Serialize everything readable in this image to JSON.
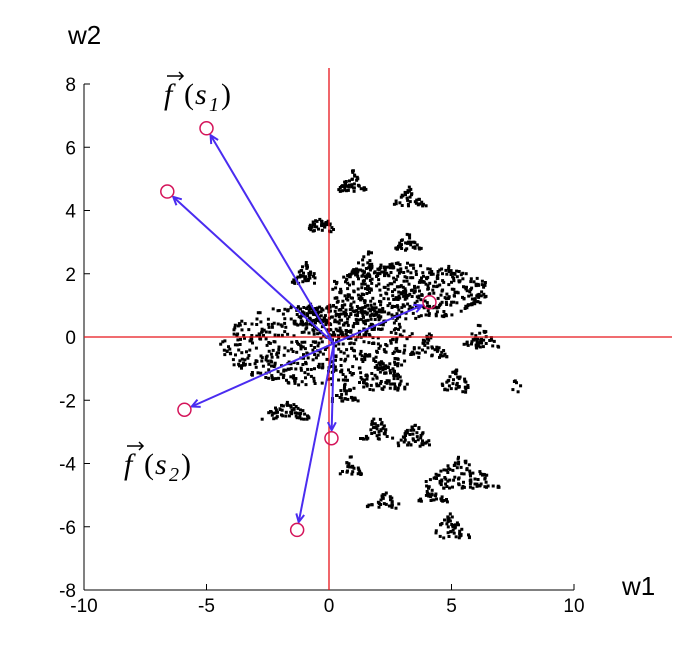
{
  "chart_data": {
    "type": "scatter",
    "title": "",
    "xlabel": "w1",
    "ylabel": "w2",
    "xlim": [
      -10,
      10
    ],
    "ylim": [
      -8,
      8
    ],
    "xticks": [
      "-10",
      "-5",
      "0",
      "5",
      "10"
    ],
    "yticks": [
      "8",
      "6",
      "4",
      "2",
      "0",
      "-2",
      "-4",
      "-6",
      "-8"
    ],
    "grid": false,
    "reference_lines": {
      "x": 0,
      "y": 0,
      "color": "#e8141b"
    },
    "colors": {
      "points": "#000000",
      "markers": "#d4145a",
      "arrows": "#4a2cf0",
      "reference": "#e8141b"
    },
    "arrow_origin": [
      0.2,
      -0.2
    ],
    "highlighted_points": [
      {
        "x": -5.0,
        "y": 6.6
      },
      {
        "x": -6.6,
        "y": 4.6
      },
      {
        "x": 4.1,
        "y": 1.1
      },
      {
        "x": -5.9,
        "y": -2.3
      },
      {
        "x": 0.1,
        "y": -3.2
      },
      {
        "x": -1.3,
        "y": -6.1
      }
    ],
    "clusters": [
      {
        "cx": -0.5,
        "cy": -0.2,
        "rx": 4.0,
        "ry": 1.3,
        "n": 520,
        "shape": "ellipse"
      },
      {
        "cx": 3.2,
        "cy": 1.5,
        "rx": 3.3,
        "ry": 0.9,
        "n": 420,
        "shape": "ellipse"
      },
      {
        "cx": 0.6,
        "cy": 0.6,
        "rx": 1.8,
        "ry": 0.6,
        "n": 160,
        "shape": "ellipse"
      },
      {
        "cx": 0.9,
        "cy": 5.0,
        "rx": 0.4,
        "ry": 0.4,
        "n": 45,
        "shape": "tri"
      },
      {
        "cx": 3.2,
        "cy": 4.5,
        "rx": 0.45,
        "ry": 0.35,
        "n": 35,
        "shape": "tri"
      },
      {
        "cx": -0.4,
        "cy": 3.7,
        "rx": 0.4,
        "ry": 0.4,
        "n": 40,
        "shape": "tri"
      },
      {
        "cx": 3.2,
        "cy": 3.1,
        "rx": 0.4,
        "ry": 0.35,
        "n": 35,
        "shape": "tri"
      },
      {
        "cx": -1.0,
        "cy": 2.1,
        "rx": 0.4,
        "ry": 0.4,
        "n": 40,
        "shape": "tri"
      },
      {
        "cx": 1.6,
        "cy": 2.4,
        "rx": 0.6,
        "ry": 0.5,
        "n": 55,
        "shape": "tri"
      },
      {
        "cx": -0.8,
        "cy": 0.8,
        "rx": 0.5,
        "ry": 0.4,
        "n": 40,
        "shape": "tri"
      },
      {
        "cx": 6.1,
        "cy": 0.1,
        "rx": 0.5,
        "ry": 0.45,
        "n": 45,
        "shape": "tri"
      },
      {
        "cx": 2.1,
        "cy": -1.1,
        "rx": 0.8,
        "ry": 0.6,
        "n": 80,
        "shape": "tri"
      },
      {
        "cx": 4.0,
        "cy": -0.2,
        "rx": 0.55,
        "ry": 0.45,
        "n": 45,
        "shape": "tri"
      },
      {
        "cx": -1.8,
        "cy": -2.2,
        "rx": 0.7,
        "ry": 0.4,
        "n": 55,
        "shape": "tri"
      },
      {
        "cx": 0.6,
        "cy": -1.7,
        "rx": 0.4,
        "ry": 0.35,
        "n": 30,
        "shape": "tri"
      },
      {
        "cx": 5.1,
        "cy": -1.3,
        "rx": 0.5,
        "ry": 0.45,
        "n": 40,
        "shape": "tri"
      },
      {
        "cx": 1.9,
        "cy": -2.8,
        "rx": 0.45,
        "ry": 0.45,
        "n": 40,
        "shape": "tri"
      },
      {
        "cx": 3.4,
        "cy": -3.0,
        "rx": 0.5,
        "ry": 0.45,
        "n": 45,
        "shape": "tri"
      },
      {
        "cx": 0.8,
        "cy": -4.0,
        "rx": 0.35,
        "ry": 0.35,
        "n": 25,
        "shape": "tri"
      },
      {
        "cx": 5.3,
        "cy": -4.2,
        "rx": 1.1,
        "ry": 0.6,
        "n": 95,
        "shape": "tri"
      },
      {
        "cx": 4.2,
        "cy": -4.9,
        "rx": 0.45,
        "ry": 0.3,
        "n": 30,
        "shape": "tri"
      },
      {
        "cx": 2.2,
        "cy": -5.1,
        "rx": 0.5,
        "ry": 0.3,
        "n": 30,
        "shape": "tri"
      },
      {
        "cx": 4.9,
        "cy": -5.9,
        "rx": 0.55,
        "ry": 0.45,
        "n": 45,
        "shape": "tri"
      },
      {
        "cx": 7.6,
        "cy": -1.5,
        "rx": 0.2,
        "ry": 0.2,
        "n": 6,
        "shape": "ellipse"
      }
    ],
    "annotations": [
      {
        "symbol": "f",
        "subscript": "1",
        "var": "s",
        "near": "top-left"
      },
      {
        "symbol": "f",
        "subscript": "2",
        "var": "s",
        "near": "bottom-left"
      }
    ]
  }
}
